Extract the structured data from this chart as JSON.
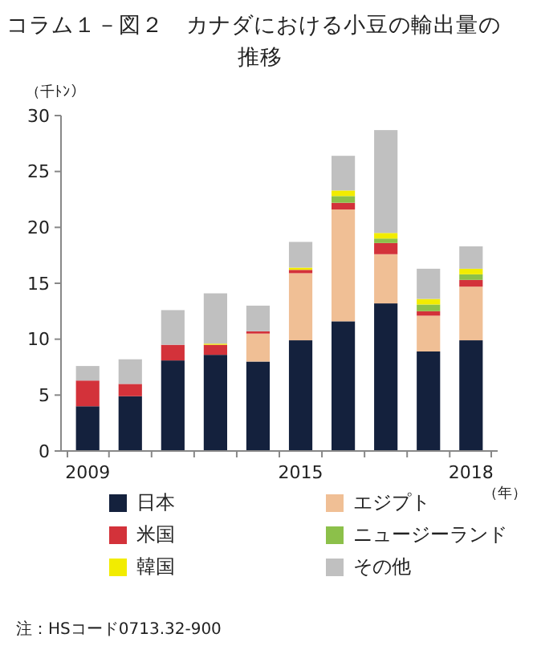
{
  "chart_data": {
    "type": "bar",
    "stacked": true,
    "title": "コラム１－図２　カナダにおける小豆の輸出量の推移",
    "ylabel": "（千ﾄﾝ）",
    "xlabel": "（年）",
    "categories": [
      "2009",
      null,
      null,
      null,
      null,
      "2015",
      null,
      null,
      null,
      "2018"
    ],
    "series": [
      {
        "name": "日本",
        "color": "#14213d",
        "values": [
          4.0,
          4.9,
          8.1,
          8.6,
          8.0,
          9.9,
          11.6,
          13.2,
          8.9,
          9.9
        ]
      },
      {
        "name": "エジプト",
        "color": "#f0bf95",
        "values": [
          0,
          0,
          0,
          0,
          2.5,
          6.0,
          10.0,
          4.4,
          3.2,
          4.8
        ]
      },
      {
        "name": "米国",
        "color": "#d3323a",
        "values": [
          2.3,
          1.1,
          1.4,
          0.9,
          0.2,
          0.3,
          0.6,
          1.0,
          0.4,
          0.6
        ]
      },
      {
        "name": "ニュージーランド",
        "color": "#8cc04a",
        "values": [
          0,
          0,
          0,
          0,
          0,
          0,
          0.6,
          0.4,
          0.6,
          0.5
        ]
      },
      {
        "name": "韓国",
        "color": "#f2ec00",
        "values": [
          0,
          0,
          0,
          0.1,
          0,
          0.2,
          0.5,
          0.5,
          0.5,
          0.5
        ]
      },
      {
        "name": "その他",
        "color": "#c0c0c0",
        "values": [
          1.3,
          2.2,
          3.1,
          4.5,
          2.3,
          2.3,
          3.1,
          9.2,
          2.7,
          2.0
        ]
      }
    ],
    "ylim": [
      0,
      30
    ],
    "yticks": [
      0,
      5,
      10,
      15,
      20,
      25,
      30
    ],
    "grid": false,
    "legend": "bottom",
    "annotations": [
      "注：HSコード0713.32-900"
    ]
  }
}
